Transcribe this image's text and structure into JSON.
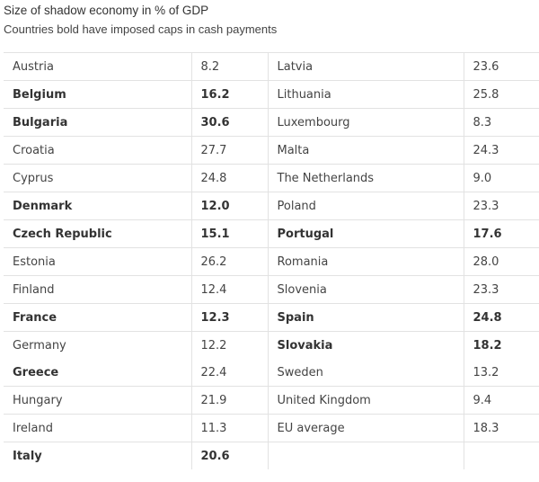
{
  "title": "Size of shadow economy in % of GDP",
  "subtitle": "Countries bold have imposed caps in cash payments",
  "rows": [
    {
      "left": {
        "name": "Austria",
        "value": "8.2",
        "bold": false,
        "value_bold": false
      },
      "right": {
        "name": "Latvia",
        "value": "23.6",
        "bold": false,
        "value_bold": false
      }
    },
    {
      "left": {
        "name": "Belgium",
        "value": "16.2",
        "bold": true,
        "value_bold": true
      },
      "right": {
        "name": "Lithuania",
        "value": "25.8",
        "bold": false,
        "value_bold": false
      }
    },
    {
      "left": {
        "name": "Bulgaria",
        "value": "30.6",
        "bold": true,
        "value_bold": true
      },
      "right": {
        "name": "Luxembourg",
        "value": "8.3",
        "bold": false,
        "value_bold": false
      }
    },
    {
      "left": {
        "name": "Croatia",
        "value": "27.7",
        "bold": false,
        "value_bold": false
      },
      "right": {
        "name": "Malta",
        "value": "24.3",
        "bold": false,
        "value_bold": false
      }
    },
    {
      "left": {
        "name": "Cyprus",
        "value": "24.8",
        "bold": false,
        "value_bold": false
      },
      "right": {
        "name": "The Netherlands",
        "value": "9.0",
        "bold": false,
        "value_bold": false
      }
    },
    {
      "left": {
        "name": "Denmark",
        "value": "12.0",
        "bold": true,
        "value_bold": true
      },
      "right": {
        "name": "Poland",
        "value": "23.3",
        "bold": false,
        "value_bold": false
      }
    },
    {
      "left": {
        "name": "Czech Republic",
        "value": "15.1",
        "bold": true,
        "value_bold": true
      },
      "right": {
        "name": "Portugal",
        "value": "17.6",
        "bold": true,
        "value_bold": true
      }
    },
    {
      "left": {
        "name": "Estonia",
        "value": "26.2",
        "bold": false,
        "value_bold": false
      },
      "right": {
        "name": "Romania",
        "value": "28.0",
        "bold": false,
        "value_bold": false
      }
    },
    {
      "left": {
        "name": "Finland",
        "value": "12.4",
        "bold": false,
        "value_bold": false
      },
      "right": {
        "name": "Slovenia",
        "value": "23.3",
        "bold": false,
        "value_bold": false
      }
    },
    {
      "left": {
        "name": "France",
        "value": "12.3",
        "bold": true,
        "value_bold": true
      },
      "right": {
        "name": "Spain",
        "value": "24.8",
        "bold": true,
        "value_bold": true
      }
    },
    {
      "left": {
        "name": "Germany",
        "value": "12.2",
        "bold": false,
        "value_bold": false
      },
      "right": {
        "name": "Slovakia",
        "value": "18.2",
        "bold": true,
        "value_bold": true
      }
    },
    {
      "left": {
        "name": "Greece",
        "value": "22.4",
        "bold": true,
        "value_bold": false
      },
      "right": {
        "name": "Sweden",
        "value": "13.2",
        "bold": false,
        "value_bold": false
      }
    },
    {
      "left": {
        "name": "Hungary",
        "value": "21.9",
        "bold": false,
        "value_bold": false
      },
      "right": {
        "name": "United Kingdom",
        "value": "9.4",
        "bold": false,
        "value_bold": false
      }
    },
    {
      "left": {
        "name": "Ireland",
        "value": "11.3",
        "bold": false,
        "value_bold": false
      },
      "right": {
        "name": "EU average",
        "value": "18.3",
        "bold": false,
        "value_bold": false
      }
    },
    {
      "left": {
        "name": "Italy",
        "value": "20.6",
        "bold": true,
        "value_bold": true
      },
      "right": null
    }
  ]
}
